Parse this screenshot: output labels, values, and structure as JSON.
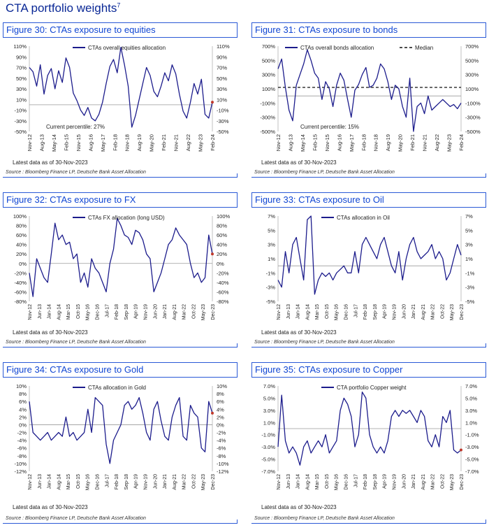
{
  "page": {
    "title": "CTA portfolio weights",
    "footnote_mark": "7"
  },
  "colors": {
    "series": "#1c1c8c",
    "zero": "#9a9a9a",
    "median": "#111111",
    "marker": "#c0392b",
    "title": "#1046d3"
  },
  "panels": [
    {
      "figure_title": "Figure 30: CTAs exposure to equities",
      "note": "Latest data as of 30-Nov-2023",
      "source": "Source : Bloomberg Finance LP, Deutsche Bank Asset Allocation",
      "annotation": "Current percentile: 27%",
      "chart_data": {
        "type": "line",
        "series": [
          {
            "name": "CTAs overall equities allocation",
            "x": [
              0,
              1,
              2,
              3,
              4,
              5,
              6,
              7,
              8,
              9,
              10,
              11,
              12,
              13,
              14,
              15,
              16,
              17,
              18,
              19,
              20,
              21,
              22,
              23,
              24,
              25,
              26,
              27,
              28,
              29,
              30,
              31,
              32,
              33,
              34,
              35,
              36,
              37,
              38,
              39,
              40,
              41,
              42,
              43,
              44,
              45,
              46,
              47,
              48,
              49,
              50
            ],
            "values": [
              70,
              62,
              35,
              75,
              20,
              55,
              68,
              30,
              64,
              42,
              88,
              70,
              22,
              8,
              -10,
              -20,
              -5,
              -25,
              -30,
              -18,
              5,
              40,
              72,
              85,
              60,
              108,
              75,
              35,
              -42,
              -20,
              10,
              40,
              70,
              55,
              25,
              15,
              35,
              60,
              45,
              75,
              58,
              20,
              -12,
              -25,
              5,
              40,
              20,
              48,
              -18,
              -25,
              5
            ]
          }
        ],
        "x_tick_labels": [
          "Nov-12",
          "Aug-13",
          "May-14",
          "Feb-15",
          "Nov-15",
          "Aug-16",
          "May-17",
          "Feb-18",
          "Nov-18",
          "Aug-19",
          "May-20",
          "Feb-21",
          "Nov-21",
          "Aug-22",
          "May-23",
          "Feb-24"
        ],
        "y_tick_labels": [
          "110%",
          "90%",
          "70%",
          "50%",
          "30%",
          "10%",
          "-10%",
          "-30%",
          "-50%"
        ],
        "y_tick_labels_right": [
          "110%",
          "90%",
          "70%",
          "50%",
          "30%",
          "10%",
          "-10%",
          "-30%",
          "-50%"
        ],
        "ylim": [
          -50,
          110
        ],
        "last_point_marker": true
      }
    },
    {
      "figure_title": "Figure 31: CTAs exposure to bonds",
      "note": "Latest data as of 30-Nov-2023",
      "source": "Source : Bloomberg Finance LP, Deutsche Bank Asset Allocation",
      "annotation": "Current percentile: 15%",
      "chart_data": {
        "type": "line",
        "series": [
          {
            "name": "CTAs overall bonds allocation",
            "x": [
              0,
              1,
              2,
              3,
              4,
              5,
              6,
              7,
              8,
              9,
              10,
              11,
              12,
              13,
              14,
              15,
              16,
              17,
              18,
              19,
              20,
              21,
              22,
              23,
              24,
              25,
              26,
              27,
              28,
              29,
              30,
              31,
              32,
              33,
              34,
              35,
              36,
              37,
              38,
              39,
              40,
              41,
              42,
              43,
              44,
              45,
              46,
              47,
              48,
              49,
              50
            ],
            "values": [
              380,
              520,
              120,
              -200,
              -350,
              150,
              300,
              450,
              650,
              500,
              320,
              250,
              -50,
              200,
              100,
              -150,
              150,
              320,
              220,
              -50,
              -300,
              80,
              160,
              300,
              400,
              120,
              150,
              250,
              450,
              380,
              200,
              -50,
              150,
              100,
              -150,
              -300,
              250,
              -500,
              -150,
              -100,
              -250,
              0,
              -200,
              -150,
              -100,
              -50,
              -100,
              -150,
              -120,
              -180,
              -100
            ]
          },
          {
            "name": "Median",
            "values": [
              120
            ]
          }
        ],
        "x_tick_labels": [
          "Nov-12",
          "Aug-13",
          "May-14",
          "Feb-15",
          "Nov-15",
          "Aug-16",
          "May-17",
          "Feb-18",
          "Nov-18",
          "Aug-19",
          "May-20",
          "Feb-21",
          "Nov-21",
          "Aug-22",
          "May-23",
          "Feb-24"
        ],
        "y_tick_labels": [
          "700%",
          "500%",
          "300%",
          "100%",
          "-100%",
          "-300%",
          "-500%"
        ],
        "y_tick_labels_right": [
          "700%",
          "500%",
          "300%",
          "100%",
          "-100%",
          "-300%",
          "-500%"
        ],
        "ylim": [
          -500,
          700
        ],
        "last_point_marker": false
      }
    },
    {
      "figure_title": "Figure 32: CTAs exposure to FX",
      "note": "Latest data as of 30-Nov-2023",
      "source": "Source : Bloomberg Finance LP, Deutsche Bank Asset Allocation",
      "annotation": "",
      "chart_data": {
        "type": "line",
        "series": [
          {
            "name": "CTAs FX allocation (long USD)",
            "x": [
              0,
              1,
              2,
              3,
              4,
              5,
              6,
              7,
              8,
              9,
              10,
              11,
              12,
              13,
              14,
              15,
              16,
              17,
              18,
              19,
              20,
              21,
              22,
              23,
              24,
              25,
              26,
              27,
              28,
              29,
              30,
              31,
              32,
              33,
              34,
              35,
              36,
              37,
              38,
              39,
              40,
              41,
              42,
              43,
              44,
              45,
              46,
              47,
              48,
              49,
              50
            ],
            "values": [
              -20,
              -70,
              10,
              -10,
              -30,
              -40,
              20,
              85,
              50,
              60,
              40,
              45,
              10,
              20,
              -40,
              -20,
              -50,
              10,
              -10,
              -20,
              -40,
              -60,
              0,
              30,
              95,
              80,
              60,
              55,
              40,
              70,
              65,
              50,
              20,
              10,
              -60,
              -40,
              -20,
              10,
              40,
              50,
              75,
              60,
              50,
              40,
              0,
              -30,
              -20,
              -40,
              -30,
              60,
              20
            ]
          }
        ],
        "x_tick_labels": [
          "Nov-12",
          "Jun-13",
          "Jan-14",
          "Aug-14",
          "Mar-15",
          "Oct-15",
          "May-16",
          "Dec-16",
          "Jul-17",
          "Feb-18",
          "Sep-18",
          "Apr-19",
          "Nov-19",
          "Jun-20",
          "Jan-21",
          "Aug-21",
          "Mar-22",
          "Oct-22",
          "May-23",
          "Dec-23"
        ],
        "y_tick_labels": [
          "100%",
          "80%",
          "60%",
          "40%",
          "20%",
          "0%",
          "-20%",
          "-40%",
          "-60%",
          "-80%"
        ],
        "y_tick_labels_right": [
          "100%",
          "80%",
          "60%",
          "40%",
          "20%",
          "0%",
          "-20%",
          "-40%",
          "-60%",
          "-80%"
        ],
        "ylim": [
          -80,
          100
        ],
        "last_point_marker": true
      }
    },
    {
      "figure_title": "Figure 33: CTAs exposure to Oil",
      "note": "Latest data as of 30-Nov-2023",
      "source": "Source : Bloomberg Finance LP, Deutsche Bank Asset Allocation",
      "annotation": "",
      "chart_data": {
        "type": "line",
        "series": [
          {
            "name": "CTAs allocation in Oil",
            "x": [
              0,
              1,
              2,
              3,
              4,
              5,
              6,
              7,
              8,
              9,
              10,
              11,
              12,
              13,
              14,
              15,
              16,
              17,
              18,
              19,
              20,
              21,
              22,
              23,
              24,
              25,
              26,
              27,
              28,
              29,
              30,
              31,
              32,
              33,
              34,
              35,
              36,
              37,
              38,
              39,
              40,
              41,
              42,
              43,
              44,
              45,
              46,
              47,
              48,
              49,
              50
            ],
            "values": [
              -2,
              -3,
              2,
              -1,
              3,
              4,
              1,
              -2,
              6.5,
              7,
              -4,
              -2,
              -1,
              -1.5,
              -1,
              -2,
              -1,
              -0.5,
              0,
              -1,
              -1,
              2,
              -1,
              3,
              4,
              3,
              2,
              1,
              3,
              4,
              2,
              0,
              -1,
              2,
              -2,
              1,
              3,
              4,
              2,
              1,
              1.5,
              2,
              3,
              1,
              2,
              1,
              -2,
              -1,
              1,
              3,
              1.5
            ]
          }
        ],
        "x_tick_labels": [
          "Nov-12",
          "Jun-13",
          "Jan-14",
          "Aug-14",
          "Mar-15",
          "Oct-15",
          "May-16",
          "Dec-16",
          "Jul-17",
          "Feb-18",
          "Sep-18",
          "Apr-19",
          "Nov-19",
          "Jun-20",
          "Jan-21",
          "Aug-21",
          "Mar-22",
          "Oct-22",
          "May-23",
          "Dec-23"
        ],
        "y_tick_labels": [
          "7%",
          "5%",
          "3%",
          "1%",
          "-1%",
          "-3%",
          "-5%"
        ],
        "y_tick_labels_right": [
          "7%",
          "5%",
          "3%",
          "1%",
          "-1%",
          "-3%",
          "-5%"
        ],
        "ylim": [
          -5,
          7
        ],
        "last_point_marker": false
      }
    },
    {
      "figure_title": "Figure 34: CTAs exposure to Gold",
      "note": "Latest data as of 30-Nov-2023",
      "source": "Source : Bloomberg Finance LP, Deutsche Bank Asset Allocation",
      "annotation": "",
      "chart_data": {
        "type": "line",
        "series": [
          {
            "name": "CTAs allocation in Gold",
            "x": [
              0,
              1,
              2,
              3,
              4,
              5,
              6,
              7,
              8,
              9,
              10,
              11,
              12,
              13,
              14,
              15,
              16,
              17,
              18,
              19,
              20,
              21,
              22,
              23,
              24,
              25,
              26,
              27,
              28,
              29,
              30,
              31,
              32,
              33,
              34,
              35,
              36,
              37,
              38,
              39,
              40,
              41,
              42,
              43,
              44,
              45,
              46,
              47,
              48,
              49,
              50
            ],
            "values": [
              6,
              -2,
              -3,
              -4,
              -3,
              -2,
              -4,
              -3,
              -2,
              -3,
              2,
              -3,
              -2,
              -4,
              -3,
              -2,
              4,
              -2,
              7,
              6,
              5,
              -5,
              -10,
              -4,
              -2,
              0,
              5,
              6,
              4,
              5,
              7,
              3,
              -2,
              -4,
              4,
              6,
              1,
              -3,
              -4,
              2,
              5,
              7,
              -3,
              -4,
              5,
              3,
              2,
              -6,
              -7,
              6,
              3
            ]
          }
        ],
        "x_tick_labels": [
          "Nov-12",
          "Jun-13",
          "Jan-14",
          "Aug-14",
          "Mar-15",
          "Oct-15",
          "May-16",
          "Dec-16",
          "Jul-17",
          "Feb-18",
          "Sep-18",
          "Apr-19",
          "Nov-19",
          "Jun-20",
          "Jan-21",
          "Aug-21",
          "Mar-22",
          "Oct-22",
          "May-23",
          "Dec-23"
        ],
        "y_tick_labels": [
          "10%",
          "8%",
          "6%",
          "4%",
          "2%",
          "0%",
          "-2%",
          "-4%",
          "-6%",
          "-8%",
          "-10%",
          "-12%"
        ],
        "y_tick_labels_right": [
          "10%",
          "8%",
          "6%",
          "4%",
          "2%",
          "0%",
          "-2%",
          "-4%",
          "-6%",
          "-8%",
          "-10%",
          "-12%"
        ],
        "ylim": [
          -12,
          10
        ],
        "last_point_marker": true
      }
    },
    {
      "figure_title": "Figure 35: CTAs exposure to Copper",
      "note": "Latest data as of 30-Nov-2023",
      "source": "Source : Bloomberg Finance LP, Deutsche Bank Asset Allocation",
      "annotation": "",
      "chart_data": {
        "type": "line",
        "series": [
          {
            "name": "CTA portfolio Copper weight",
            "x": [
              0,
              1,
              2,
              3,
              4,
              5,
              6,
              7,
              8,
              9,
              10,
              11,
              12,
              13,
              14,
              15,
              16,
              17,
              18,
              19,
              20,
              21,
              22,
              23,
              24,
              25,
              26,
              27,
              28,
              29,
              30,
              31,
              32,
              33,
              34,
              35,
              36,
              37,
              38,
              39,
              40,
              41,
              42,
              43,
              44,
              45,
              46,
              47,
              48,
              49,
              50
            ],
            "values": [
              -3,
              5.5,
              -2,
              -4,
              -3,
              -4,
              -6,
              -3,
              -2,
              -4,
              -3,
              -2,
              -3,
              -1,
              -4,
              -3,
              -2,
              3,
              5,
              4,
              2,
              -3,
              -1,
              6,
              5,
              -1,
              -3,
              -4,
              -3,
              -4,
              -2,
              2,
              3,
              2,
              3,
              2.5,
              3,
              2,
              1,
              3,
              2,
              -2,
              -3,
              -1,
              -3,
              2,
              1,
              3,
              -3.5,
              -4,
              -3.5
            ]
          }
        ],
        "x_tick_labels": [
          "Nov-12",
          "Jun-13",
          "Jan-14",
          "Aug-14",
          "Mar-15",
          "Oct-15",
          "May-16",
          "Dec-16",
          "Jul-17",
          "Feb-18",
          "Sep-18",
          "Apr-19",
          "Nov-19",
          "Jun-20",
          "Jan-21",
          "Aug-21",
          "Mar-22",
          "Oct-22",
          "May-23",
          "Dec-23"
        ],
        "y_tick_labels": [
          "7.0%",
          "5.0%",
          "3.0%",
          "1.0%",
          "-1.0%",
          "-3.0%",
          "-5.0%",
          "-7.0%"
        ],
        "y_tick_labels_right": [
          "7.0%",
          "5.0%",
          "3.0%",
          "1.0%",
          "-1.0%",
          "-3.0%",
          "-5.0%",
          "-7.0%"
        ],
        "ylim": [
          -7,
          7
        ],
        "last_point_marker": true
      }
    }
  ]
}
